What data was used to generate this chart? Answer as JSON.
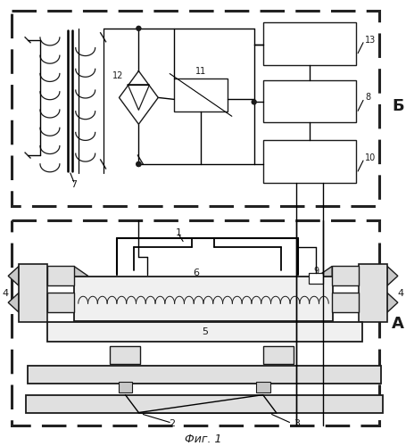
{
  "title": "Фиг. 1",
  "label_B": "Б",
  "label_A": "А",
  "bg": "#ffffff",
  "lc": "#1a1a1a",
  "g1": "#c8c8c8",
  "g2": "#e0e0e0",
  "g3": "#f0f0f0"
}
